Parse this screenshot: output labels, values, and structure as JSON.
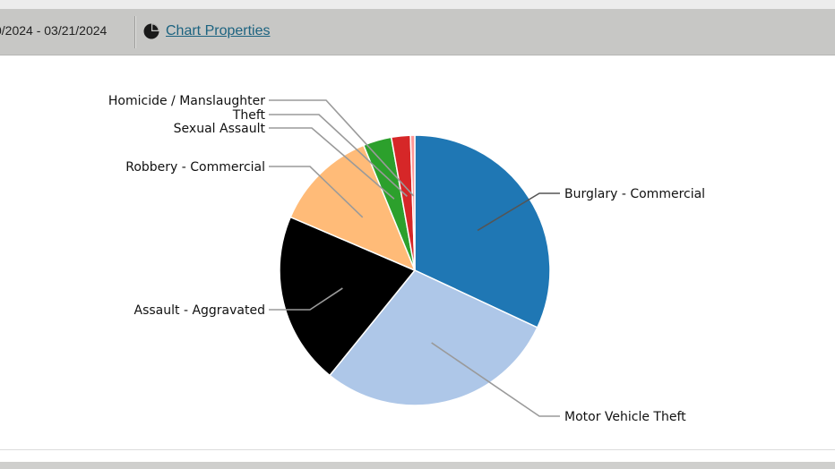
{
  "toolbar": {
    "date_range": "0/2024 - 03/21/2024",
    "chart_properties_label": "Chart Properties",
    "chart_properties_icon": "pie-chart-icon"
  },
  "chart_data": {
    "type": "pie",
    "categories": [
      "Burglary - Commercial",
      "Motor Vehicle Theft",
      "Assault - Aggravated",
      "Robbery - Commercial",
      "Sexual Assault",
      "Theft",
      "Homicide / Manslaughter"
    ],
    "values": [
      31,
      28,
      20,
      12,
      3.3,
      2.2,
      0.5
    ],
    "colors": [
      "#1f77b4",
      "#aec7e8",
      "#000000",
      "#ffbb78",
      "#2ca02c",
      "#d62728",
      "#ff9896"
    ],
    "legend": "none (labels with leader lines)",
    "start_angle": "12 o'clock, clockwise"
  }
}
